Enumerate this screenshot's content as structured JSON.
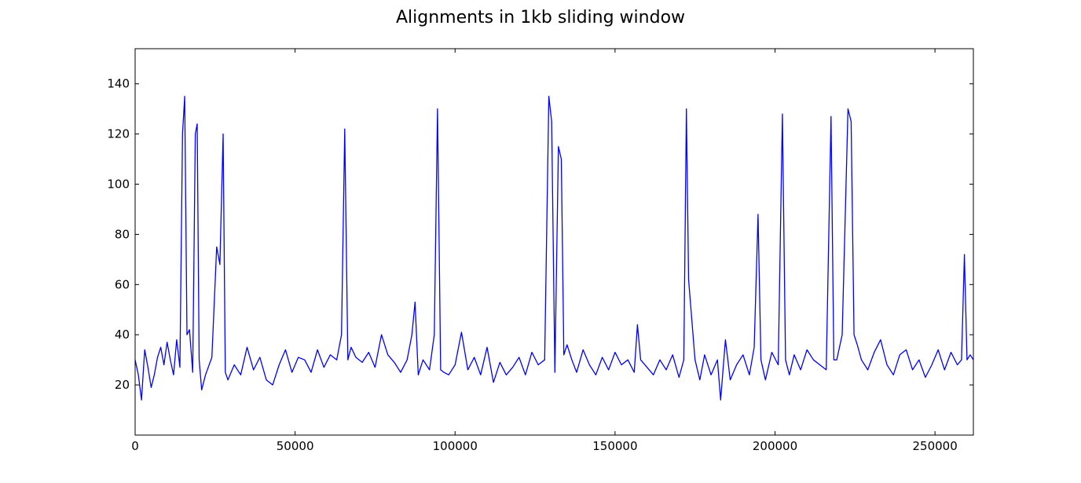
{
  "chart_data": {
    "type": "line",
    "title": "Alignments in 1kb sliding window",
    "xlabel": "",
    "ylabel": "",
    "xlim": [
      0,
      262000
    ],
    "ylim": [
      0,
      154
    ],
    "x_ticks": [
      0,
      50000,
      100000,
      150000,
      200000,
      250000
    ],
    "x_tick_labels": [
      "0",
      "50000",
      "100000",
      "150000",
      "200000",
      "250000"
    ],
    "y_ticks": [
      20,
      40,
      60,
      80,
      100,
      120,
      140
    ],
    "y_tick_labels": [
      "20",
      "40",
      "60",
      "80",
      "100",
      "120",
      "140"
    ],
    "grid": false,
    "legend": false,
    "line_color": "#0000ff",
    "series": [
      {
        "x": [
          0,
          1000,
          2000,
          3000,
          4000,
          5000,
          6000,
          7000,
          8000,
          9000,
          10000,
          11000,
          12000,
          13000,
          14000,
          14800,
          15500,
          16200,
          17000,
          18000,
          18800,
          19400,
          20000,
          20800,
          22000,
          24000,
          25500,
          26500,
          27500,
          28200,
          29000,
          31000,
          33000,
          35000,
          37000,
          39000,
          41000,
          43000,
          45000,
          47000,
          49000,
          51000,
          53000,
          55000,
          57000,
          59000,
          61000,
          63000,
          64500,
          65500,
          66500,
          67500,
          69000,
          71000,
          73000,
          75000,
          77000,
          79000,
          81000,
          83000,
          85000,
          86500,
          87500,
          88500,
          90000,
          92000,
          93500,
          94500,
          95500,
          96500,
          98000,
          100000,
          102000,
          104000,
          106000,
          108000,
          110000,
          112000,
          114000,
          116000,
          118000,
          120000,
          122000,
          124000,
          126000,
          128000,
          129300,
          130200,
          131200,
          132300,
          133200,
          134000,
          135000,
          136500,
          138000,
          140000,
          142000,
          144000,
          146000,
          148000,
          150000,
          152000,
          154000,
          156000,
          157000,
          158000,
          160000,
          162000,
          164000,
          166000,
          168000,
          170000,
          171500,
          172300,
          173000,
          174000,
          175000,
          176500,
          178000,
          180000,
          182000,
          183000,
          184500,
          186000,
          188000,
          190000,
          192000,
          193500,
          194700,
          195600,
          197000,
          199000,
          201000,
          202300,
          203300,
          204500,
          206000,
          208000,
          210000,
          212000,
          214000,
          216000,
          217500,
          218400,
          219300,
          221000,
          222800,
          223800,
          224700,
          225700,
          227000,
          229000,
          231000,
          233000,
          235000,
          237000,
          239000,
          241000,
          243000,
          245000,
          247000,
          249000,
          251000,
          253000,
          255000,
          257000,
          258300,
          259200,
          260000,
          261000,
          262000
        ],
        "values": [
          30,
          24,
          14,
          34,
          27,
          19,
          24,
          31,
          35,
          28,
          37,
          30,
          24,
          38,
          27,
          120,
          135,
          40,
          42,
          25,
          120,
          124,
          30,
          18,
          24,
          31,
          75,
          68,
          120,
          25,
          22,
          28,
          24,
          35,
          26,
          31,
          22,
          20,
          28,
          34,
          25,
          31,
          30,
          25,
          34,
          27,
          32,
          30,
          40,
          122,
          30,
          35,
          31,
          29,
          33,
          27,
          40,
          32,
          29,
          25,
          30,
          40,
          53,
          24,
          30,
          26,
          40,
          130,
          26,
          25,
          24,
          28,
          41,
          26,
          31,
          24,
          35,
          21,
          29,
          24,
          27,
          31,
          24,
          33,
          28,
          30,
          135,
          125,
          25,
          115,
          110,
          32,
          36,
          30,
          25,
          34,
          28,
          24,
          31,
          26,
          33,
          28,
          30,
          25,
          44,
          30,
          27,
          24,
          30,
          26,
          32,
          23,
          30,
          130,
          62,
          46,
          30,
          22,
          32,
          24,
          30,
          14,
          38,
          22,
          28,
          32,
          24,
          35,
          88,
          30,
          22,
          33,
          28,
          128,
          30,
          24,
          32,
          26,
          34,
          30,
          28,
          26,
          127,
          30,
          30,
          40,
          130,
          125,
          40,
          36,
          30,
          26,
          33,
          38,
          28,
          24,
          32,
          34,
          26,
          30,
          23,
          28,
          34,
          26,
          33,
          28,
          30,
          72,
          30,
          32,
          30
        ]
      }
    ]
  }
}
